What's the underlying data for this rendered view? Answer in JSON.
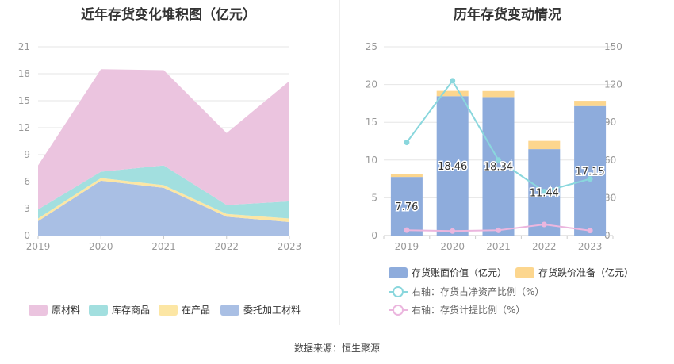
{
  "left_title": "近年存货变化堆积图（亿元）",
  "right_title": "历年存货变动情况",
  "source": "数据来源：恒生聚源",
  "colors": {
    "raw_materials": "#EBC4DF",
    "finished_goods": "#A2DFDF",
    "wip": "#FCE6A4",
    "consigned": "#A9BFE4",
    "bar_main": "#8EACDC",
    "bar_prov": "#FCD68E",
    "line_ratio": "#8AD7DD",
    "line_prov": "#EBB6DE"
  },
  "chart_data": [
    {
      "type": "area",
      "stacked": true,
      "title": "近年存货变化堆积图（亿元）",
      "categories": [
        "2019",
        "2020",
        "2021",
        "2022",
        "2023"
      ],
      "yticks": [
        "0",
        "3",
        "6",
        "9",
        "12",
        "15",
        "18",
        "21"
      ],
      "ylim": [
        0,
        21
      ],
      "grid": true,
      "legend_position": "bottom",
      "series": [
        {
          "key": "consigned",
          "name": "委托加工材料",
          "values": [
            1.6,
            6.1,
            5.3,
            2.1,
            1.5
          ]
        },
        {
          "key": "wip",
          "name": "在产品",
          "values": [
            0.3,
            0.3,
            0.3,
            0.3,
            0.4
          ]
        },
        {
          "key": "finished_goods",
          "name": "库存商品",
          "values": [
            1.0,
            0.7,
            2.2,
            1.0,
            1.9
          ]
        },
        {
          "key": "raw_materials",
          "name": "原材料",
          "values": [
            4.9,
            11.4,
            10.6,
            8.0,
            13.4
          ]
        }
      ],
      "legend_order": [
        "raw_materials",
        "finished_goods",
        "wip",
        "consigned"
      ]
    },
    {
      "type": "bar",
      "stacked": true,
      "title": "历年存货变动情况",
      "categories": [
        "2019",
        "2020",
        "2021",
        "2022",
        "2023"
      ],
      "yticks_left": [
        "0",
        "5",
        "10",
        "15",
        "20",
        "25"
      ],
      "yticks_right": [
        "0",
        "30",
        "60",
        "90",
        "120",
        "150"
      ],
      "ylim_left": [
        0,
        25
      ],
      "ylim_right": [
        0,
        150
      ],
      "grid": true,
      "legend_position": "bottom",
      "bar_series": [
        {
          "key": "bar_main",
          "name": "存货账面价值（亿元）",
          "values": [
            7.76,
            18.46,
            18.34,
            11.44,
            17.15
          ],
          "labels": [
            "7.76",
            "18.46",
            "18.34",
            "11.44",
            "17.15"
          ]
        },
        {
          "key": "bar_prov",
          "name": "存货跌价准备（亿元）",
          "values": [
            0.35,
            0.7,
            0.8,
            1.1,
            0.7
          ]
        }
      ],
      "line_series": [
        {
          "key": "line_ratio",
          "name": "右轴：存货占净资产比例（%）",
          "values": [
            74,
            123,
            60,
            35,
            45
          ]
        },
        {
          "key": "line_prov",
          "name": "右轴：存货计提比例（%）",
          "values": [
            4.3,
            3.6,
            4.2,
            8.8,
            4.0
          ]
        }
      ]
    }
  ]
}
